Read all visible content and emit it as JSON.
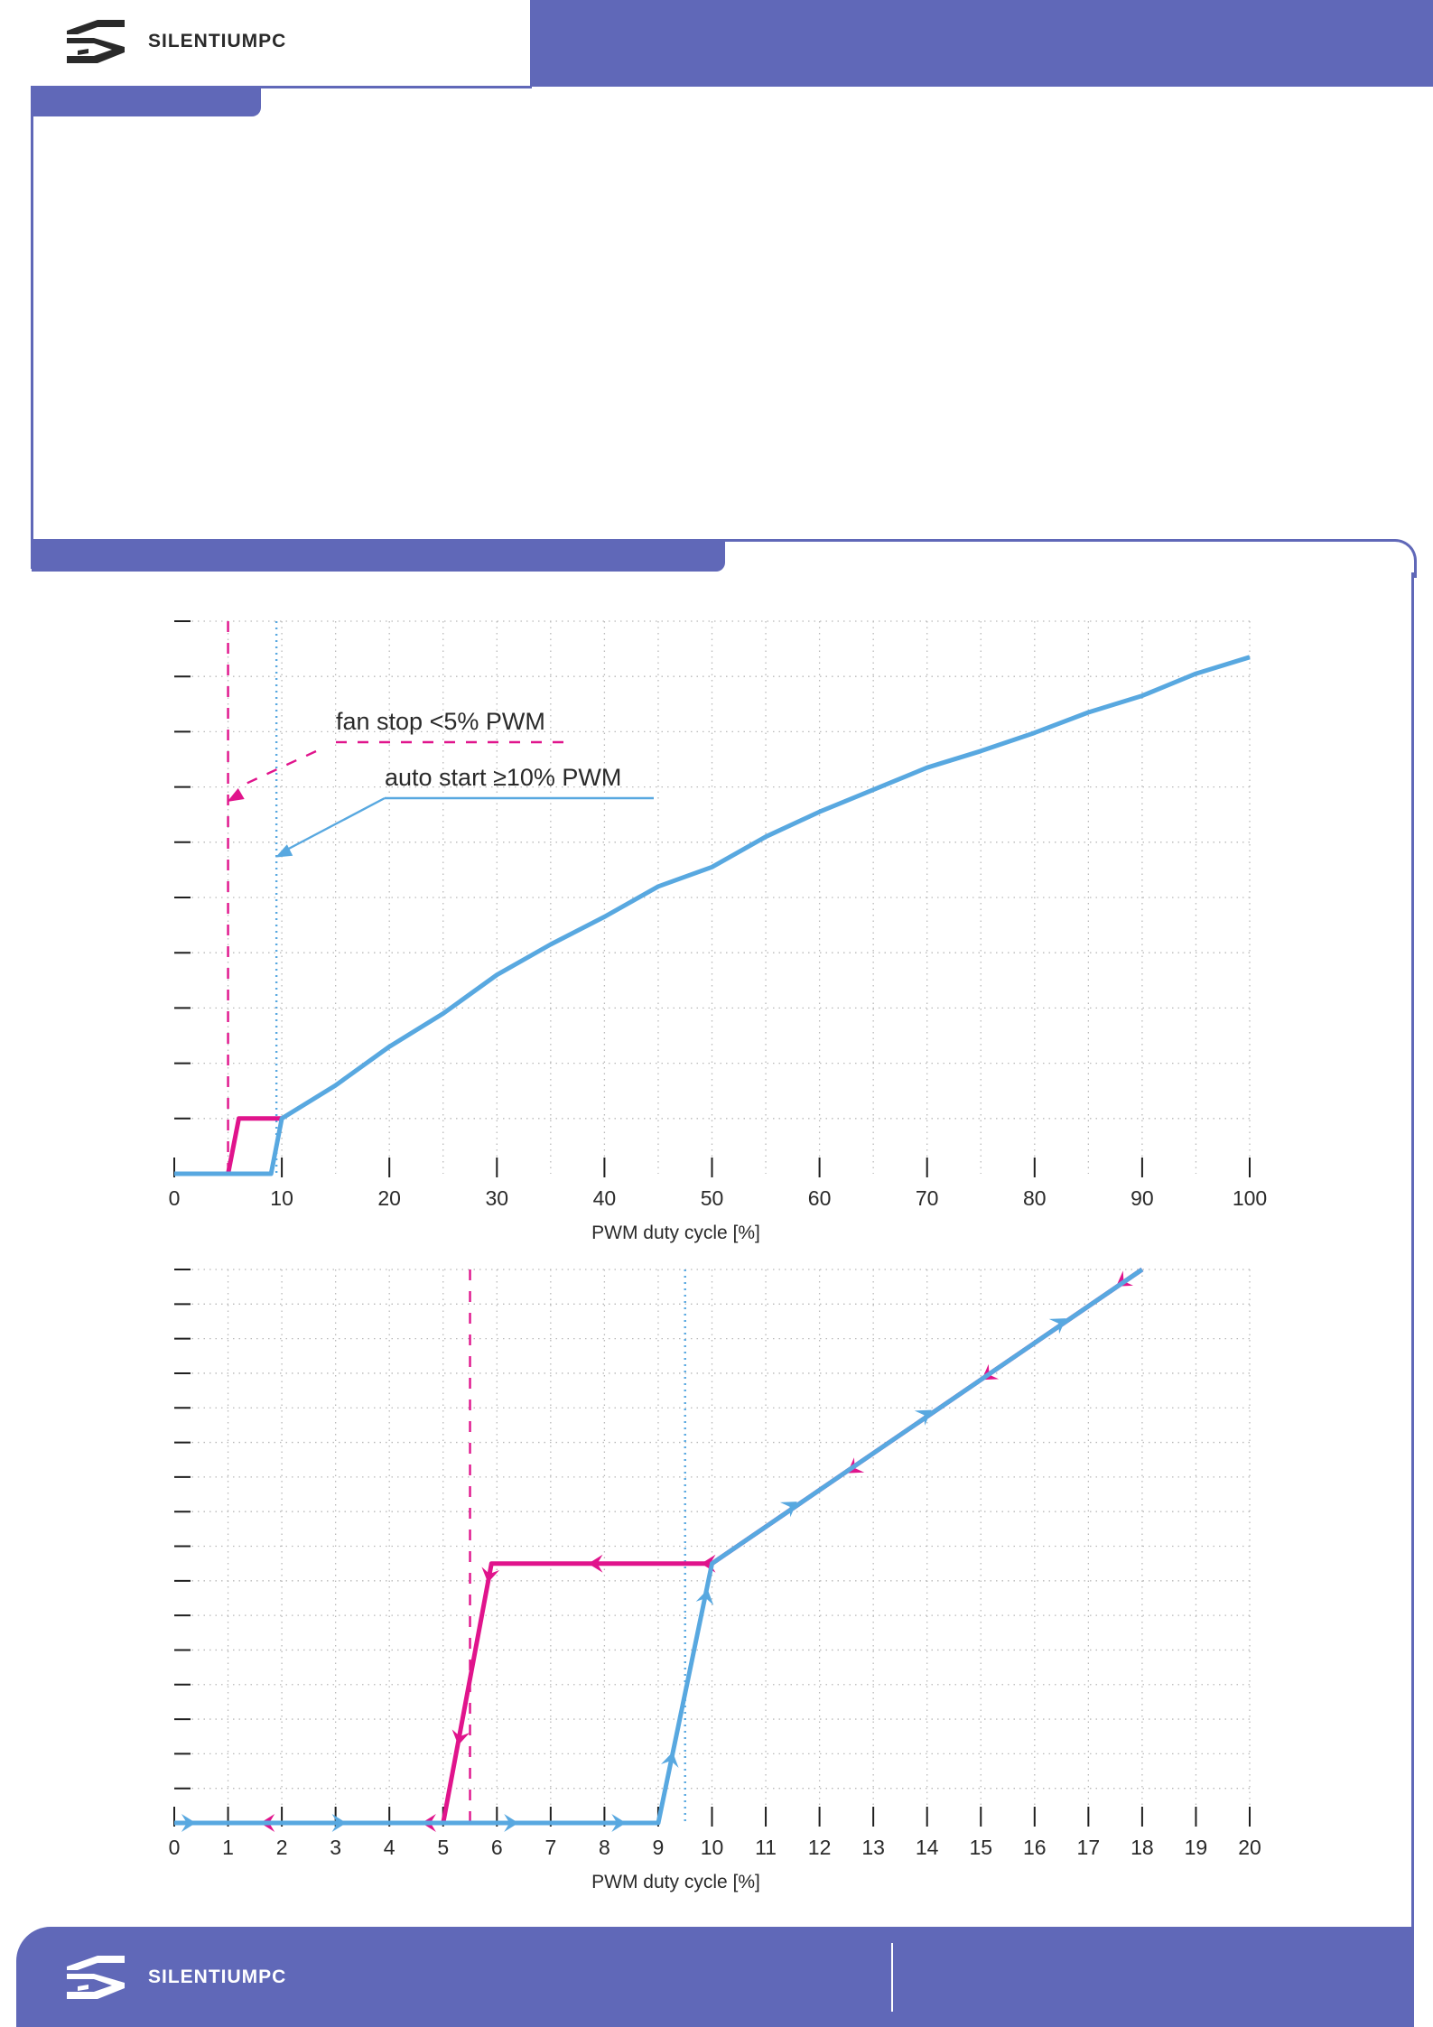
{
  "brand": {
    "name": "SILENTIUMPC",
    "logo_icon": "silentiumpc-logo-icon"
  },
  "colors": {
    "primary": "#6068b8",
    "series_blue": "#58a8e0",
    "series_pink": "#e0148c",
    "text": "#2a2a2a"
  },
  "chart_data": [
    {
      "type": "line",
      "title": "",
      "xlabel": "PWM duty cycle [%]",
      "ylabel": "",
      "xlim": [
        0,
        100
      ],
      "ylim": [
        0,
        10
      ],
      "x_ticks": [
        0,
        10,
        20,
        30,
        40,
        50,
        60,
        70,
        80,
        90,
        100
      ],
      "x_tick_labels": [
        "0",
        "10",
        "20",
        "30",
        "40",
        "50",
        "60",
        "70",
        "80",
        "90",
        "100"
      ],
      "y_tick_count": 11,
      "y_tick_labels": [],
      "grid": true,
      "series": [
        {
          "color": "#e0148c",
          "points": [
            [
              0,
              0
            ],
            [
              5,
              0
            ],
            [
              6,
              1
            ],
            [
              10,
              1
            ]
          ]
        },
        {
          "color": "#58a8e0",
          "points": [
            [
              0,
              0
            ],
            [
              9,
              0
            ],
            [
              10,
              1
            ],
            [
              15,
              1.6
            ],
            [
              20,
              2.3
            ],
            [
              25,
              2.9
            ],
            [
              30,
              3.6
            ],
            [
              35,
              4.15
            ],
            [
              40,
              4.65
            ],
            [
              45,
              5.2
            ],
            [
              50,
              5.55
            ],
            [
              55,
              6.1
            ],
            [
              60,
              6.55
            ],
            [
              65,
              6.95
            ],
            [
              70,
              7.35
            ],
            [
              75,
              7.65
            ],
            [
              80,
              7.98
            ],
            [
              85,
              8.35
            ],
            [
              90,
              8.65
            ],
            [
              95,
              9.05
            ],
            [
              100,
              9.35
            ]
          ]
        }
      ],
      "reference_lines": [
        {
          "x": 5,
          "color": "#e0148c",
          "style": "dashed"
        },
        {
          "x": 9.5,
          "color": "#58a8e0",
          "style": "dotted"
        }
      ],
      "annotations": [
        {
          "text": "fan stop <5% PWM",
          "color": "#e0148c",
          "line_style": "dashed",
          "target_x": 5
        },
        {
          "text": "auto start ≥10% PWM",
          "color": "#58a8e0",
          "line_style": "solid",
          "target_x": 9.5
        }
      ]
    },
    {
      "type": "line",
      "title": "",
      "xlabel": "PWM duty cycle [%]",
      "ylabel": "",
      "xlim": [
        0,
        20
      ],
      "ylim": [
        0,
        16
      ],
      "x_ticks": [
        0,
        1,
        2,
        3,
        4,
        5,
        6,
        7,
        8,
        9,
        10,
        11,
        12,
        13,
        14,
        15,
        16,
        17,
        18,
        19,
        20
      ],
      "x_tick_labels": [
        "0",
        "1",
        "2",
        "3",
        "4",
        "5",
        "6",
        "7",
        "8",
        "9",
        "10",
        "11",
        "12",
        "13",
        "14",
        "15",
        "16",
        "17",
        "18",
        "19",
        "20"
      ],
      "y_tick_count": 17,
      "y_tick_labels": [],
      "grid": true,
      "series": [
        {
          "color": "#e0148c",
          "direction": "decreasing",
          "points": [
            [
              18,
              16
            ],
            [
              10,
              7.5
            ],
            [
              5.9,
              7.5
            ],
            [
              5,
              0
            ],
            [
              0,
              0
            ]
          ],
          "arrow_positions": [
            [
              17.6,
              15.6
            ],
            [
              15.1,
              12.9
            ],
            [
              12.6,
              10.2
            ],
            [
              9.9,
              7.5
            ],
            [
              7.8,
              7.5
            ],
            [
              5.85,
              7.1
            ],
            [
              5.3,
              2.4
            ],
            [
              4.7,
              0
            ],
            [
              1.7,
              0
            ]
          ]
        },
        {
          "color": "#58a8e0",
          "direction": "increasing",
          "points": [
            [
              0,
              0
            ],
            [
              9,
              0
            ],
            [
              10,
              7.5
            ],
            [
              18,
              16
            ]
          ],
          "arrow_positions": [
            [
              0.3,
              0
            ],
            [
              3.1,
              0
            ],
            [
              6.3,
              0
            ],
            [
              8.3,
              0
            ],
            [
              9.25,
              1.9
            ],
            [
              9.9,
              6.6
            ],
            [
              11.5,
              9.2
            ],
            [
              14,
              11.85
            ],
            [
              16.5,
              14.5
            ]
          ]
        }
      ],
      "reference_lines": [
        {
          "x": 5.5,
          "color": "#e0148c",
          "style": "dashed"
        },
        {
          "x": 9.5,
          "color": "#58a8e0",
          "style": "dotted"
        }
      ]
    }
  ]
}
